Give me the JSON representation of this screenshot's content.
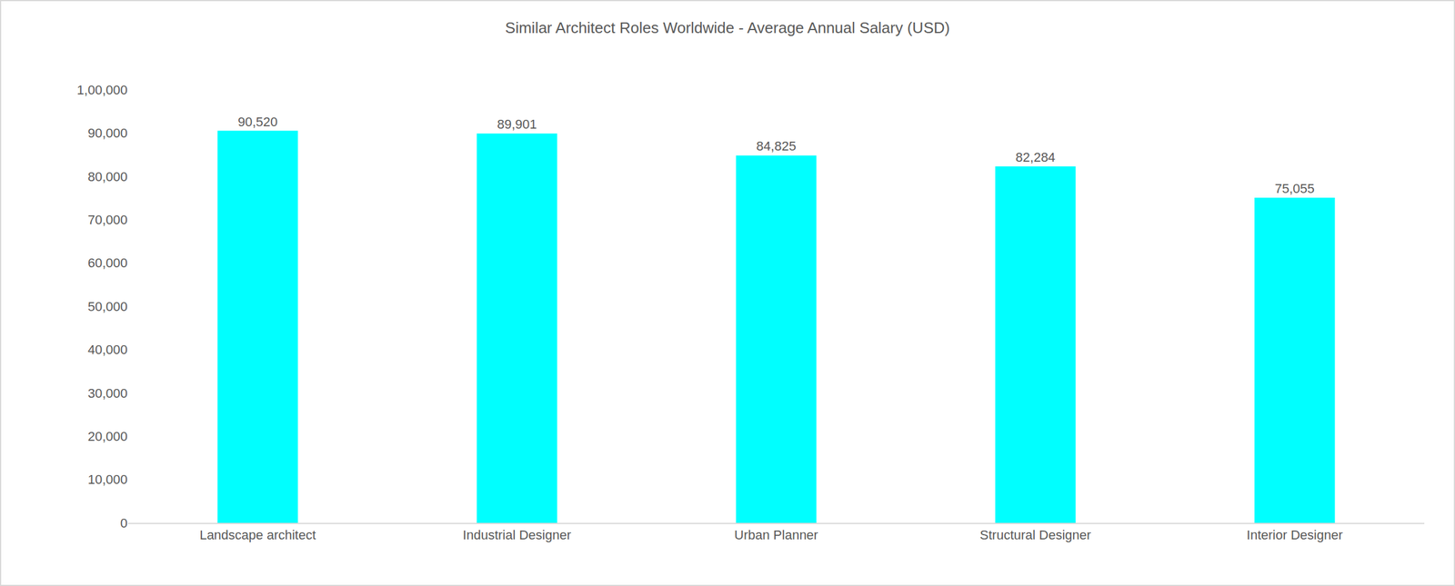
{
  "chart_data": {
    "type": "bar",
    "title": "Similar Architect Roles Worldwide - Average Annual Salary (USD)",
    "categories": [
      "Landscape architect",
      "Industrial Designer",
      "Urban Planner",
      "Structural Designer",
      "Interior Designer"
    ],
    "values": [
      90520,
      89901,
      84825,
      82284,
      75055
    ],
    "value_labels": [
      "90,520",
      "89,901",
      "84,825",
      "82,284",
      "75,055"
    ],
    "color": "#00ffff",
    "ylim": [
      0,
      100000
    ],
    "yticks": [
      0,
      {
        "value": 10000,
        "label": "10,000"
      },
      {
        "value": 20000,
        "label": "20,000"
      },
      {
        "value": 30000,
        "label": "30,000"
      },
      {
        "value": 40000,
        "label": "40,000"
      },
      {
        "value": 50000,
        "label": "50,000"
      },
      {
        "value": 60000,
        "label": "60,000"
      },
      {
        "value": 70000,
        "label": "70,000"
      },
      {
        "value": 80000,
        "label": "80,000"
      },
      {
        "value": 90000,
        "label": "90,000"
      },
      {
        "value": 100000,
        "label": "1,00,000"
      }
    ],
    "grid": false,
    "data_labels": true
  }
}
